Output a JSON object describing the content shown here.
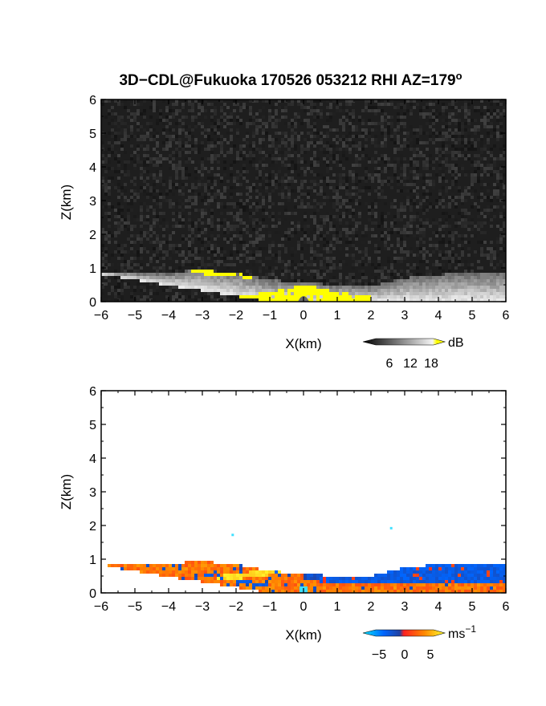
{
  "title": "3D−CDL@Fukuoka 170526 053212 RHI AZ=179",
  "title_superscript": "o",
  "chart_data": [
    {
      "type": "heatmap",
      "variable": "signal",
      "xlabel": "X(km)",
      "ylabel": "Z(km)",
      "xlim": [
        -6,
        6
      ],
      "ylim": [
        0,
        6
      ],
      "xticks": [
        "−6",
        "−5",
        "−4",
        "−3",
        "−2",
        "−1",
        "0",
        "1",
        "2",
        "3",
        "4",
        "5",
        "6"
      ],
      "yticks": [
        "0",
        "1",
        "2",
        "3",
        "4",
        "5",
        "6"
      ],
      "colorbar": {
        "unit": "dB",
        "ticks": [
          "6",
          "12",
          "18"
        ],
        "range": [
          0,
          21
        ]
      },
      "layer_top_km": [
        {
          "x": -6,
          "z": 0.9
        },
        {
          "x": -5,
          "z": 0.85
        },
        {
          "x": -4,
          "z": 0.82
        },
        {
          "x": -3.2,
          "z": 0.95
        },
        {
          "x": -2,
          "z": 0.85
        },
        {
          "x": -1,
          "z": 0.65
        },
        {
          "x": 0,
          "z": 0.55
        },
        {
          "x": 1,
          "z": 0.5
        },
        {
          "x": 2,
          "z": 0.45
        },
        {
          "x": 3,
          "z": 0.7
        },
        {
          "x": 4,
          "z": 0.8
        },
        {
          "x": 5,
          "z": 0.85
        },
        {
          "x": 6,
          "z": 0.85
        }
      ],
      "strong_echo_x_range_km": [
        -3.3,
        2.0
      ]
    },
    {
      "type": "heatmap",
      "variable": "doppler_velocity",
      "xlabel": "X(km)",
      "ylabel": "Z(km)",
      "xlim": [
        -6,
        6
      ],
      "ylim": [
        0,
        6
      ],
      "xticks": [
        "−6",
        "−5",
        "−4",
        "−3",
        "−2",
        "−1",
        "0",
        "1",
        "2",
        "3",
        "4",
        "5",
        "6"
      ],
      "yticks": [
        "0",
        "1",
        "2",
        "3",
        "4",
        "5",
        "6"
      ],
      "colorbar": {
        "unit": "ms",
        "unit_exponent": "−1",
        "ticks": [
          "−5",
          "0",
          "5"
        ],
        "range": [
          -7,
          7
        ]
      },
      "isolated_points_km": [
        {
          "x": -2.1,
          "z": 1.72
        },
        {
          "x": 2.6,
          "z": 1.92
        }
      ]
    }
  ]
}
